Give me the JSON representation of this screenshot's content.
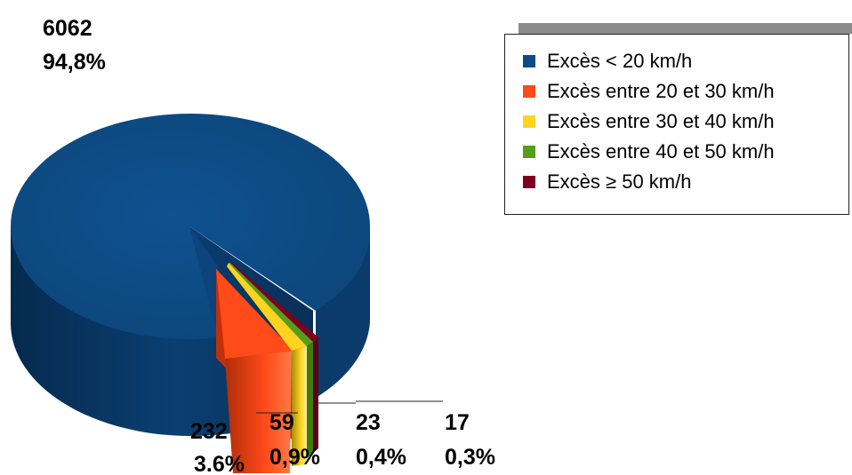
{
  "chart_data": {
    "type": "pie",
    "style": "3d-exploded",
    "title": "",
    "series": [
      {
        "name": "Excès < 20 km/h",
        "value": 6062,
        "percent_label": "94,8%",
        "color": "#0E4A85"
      },
      {
        "name": "Excès entre 20 et 30 km/h",
        "value": 232,
        "percent_label": "3.6%",
        "color": "#FF4A1A"
      },
      {
        "name": "Excès entre 30 et 40 km/h",
        "value": 59,
        "percent_label": "0,9%",
        "color": "#FFD320"
      },
      {
        "name": "Excès entre 40 et 50 km/h",
        "value": 23,
        "percent_label": "0,4%",
        "color": "#579D1C"
      },
      {
        "name": "Excès ≥ 50 km/h",
        "value": 17,
        "percent_label": "0,3%",
        "color": "#7E0021"
      }
    ],
    "legend_position": "top-right"
  }
}
